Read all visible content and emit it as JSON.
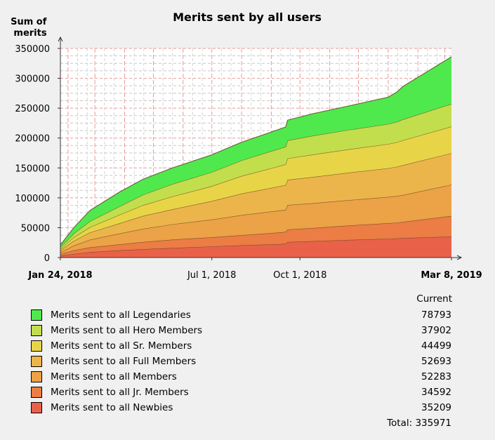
{
  "chart_data": {
    "type": "area",
    "stacked": true,
    "title": "Merits sent by all users",
    "ylabel": "Sum of\nmerits",
    "ylim": [
      0,
      350000
    ],
    "yticks": [
      0,
      50000,
      100000,
      150000,
      200000,
      250000,
      300000,
      350000
    ],
    "ytick_labels": [
      "0",
      "50000",
      "100000",
      "150000",
      "200000",
      "250000",
      "300000",
      "350000"
    ],
    "xaxis": {
      "start": "2018-01-24",
      "end": "2019-03-08"
    },
    "xtick_labels": [
      {
        "date": "2018-01-24",
        "label": "Jan 24, 2018",
        "bold": true
      },
      {
        "date": "2018-07-01",
        "label": "Jul 1, 2018",
        "bold": false
      },
      {
        "date": "2018-10-01",
        "label": "Oct 1, 2018",
        "bold": false
      },
      {
        "date": "2019-03-08",
        "label": "Mar 8, 2019",
        "bold": true
      }
    ],
    "grid": true,
    "x": [
      "2018-01-24",
      "2018-02-07",
      "2018-02-24",
      "2018-03-26",
      "2018-04-20",
      "2018-05-20",
      "2018-07-01",
      "2018-08-01",
      "2018-09-01",
      "2018-09-16",
      "2018-09-18",
      "2018-10-15",
      "2018-11-20",
      "2019-01-01",
      "2019-01-10",
      "2019-01-16",
      "2019-03-08"
    ],
    "series": [
      {
        "name": "Merits sent to all Newbies",
        "color": "#ea614a",
        "values": [
          3000,
          6000,
          9000,
          12000,
          14000,
          16000,
          18500,
          20500,
          22000,
          23000,
          26000,
          27500,
          29500,
          31500,
          32000,
          32500,
          35209
        ]
      },
      {
        "name": "Merits sent to all Jr. Members",
        "color": "#eb7d45",
        "values": [
          2500,
          6000,
          8000,
          10000,
          12000,
          14000,
          15500,
          17000,
          19000,
          20000,
          21000,
          22000,
          24000,
          26000,
          26500,
          27000,
          34592
        ]
      },
      {
        "name": "Merits sent to all Members",
        "color": "#eca247",
        "values": [
          3000,
          8000,
          13000,
          18000,
          22000,
          25500,
          29500,
          33500,
          36000,
          37000,
          41000,
          41500,
          42500,
          44000,
          44500,
          45000,
          52283
        ]
      },
      {
        "name": "Merits sent to all Full Members",
        "color": "#ecb54b",
        "values": [
          3500,
          8000,
          12000,
          17000,
          21500,
          25000,
          31000,
          36000,
          39500,
          41500,
          42000,
          44000,
          46000,
          48000,
          49000,
          50000,
          52693
        ]
      },
      {
        "name": "Merits sent to all Sr. Members",
        "color": "#e8d547",
        "values": [
          2500,
          6000,
          9000,
          14000,
          18000,
          21500,
          25000,
          29500,
          33000,
          34500,
          36000,
          37500,
          39000,
          40500,
          41000,
          41500,
          44499
        ]
      },
      {
        "name": "Merits sent to all Hero Members",
        "color": "#c3de4c",
        "values": [
          3000,
          6000,
          10000,
          14000,
          17500,
          20500,
          23500,
          26000,
          28500,
          29500,
          30000,
          31500,
          32500,
          33500,
          34000,
          35000,
          37902
        ]
      },
      {
        "name": "Merits sent to all Legendaries",
        "color": "#50e94d",
        "values": [
          3500,
          10000,
          18000,
          24000,
          26000,
          27000,
          29000,
          30500,
          32000,
          33000,
          34000,
          37000,
          40000,
          45000,
          50000,
          55000,
          78793
        ]
      }
    ]
  },
  "legend": {
    "header": "Current",
    "items": [
      {
        "label": "Merits sent to all Legendaries",
        "value": "78793",
        "color": "#50e94d"
      },
      {
        "label": "Merits sent to all Hero Members",
        "value": "37902",
        "color": "#c3de4c"
      },
      {
        "label": "Merits sent to all Sr. Members",
        "value": "44499",
        "color": "#e8d547"
      },
      {
        "label": "Merits sent to all Full Members",
        "value": "52693",
        "color": "#ecb54b"
      },
      {
        "label": "Merits sent to all Members",
        "value": "52283",
        "color": "#eca247"
      },
      {
        "label": "Merits sent to all Jr. Members",
        "value": "34592",
        "color": "#eb7d45"
      },
      {
        "label": "Merits sent to all Newbies",
        "value": "35209",
        "color": "#ea614a"
      }
    ],
    "total": "Total: 335971"
  }
}
